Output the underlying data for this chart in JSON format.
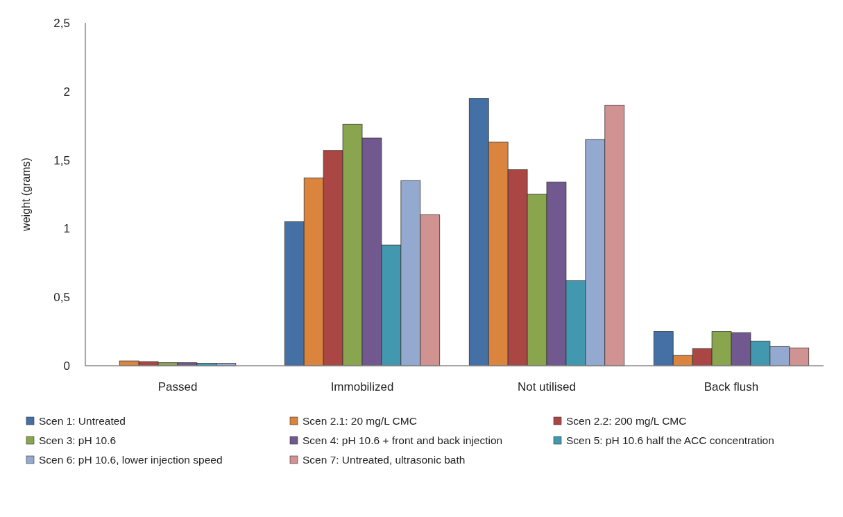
{
  "chart_data": {
    "type": "bar",
    "ylabel": "weight (grams)",
    "categories": [
      "Passed",
      "Immobilized",
      "Not utilised",
      "Back flush"
    ],
    "ylim": [
      0,
      2.5
    ],
    "yticks": [
      0,
      {
        "value": 0.5,
        "label": "0,5"
      },
      1,
      {
        "value": 1.5,
        "label": "1,5"
      },
      2,
      {
        "value": 2.5,
        "label": "2,5"
      }
    ],
    "grid": false,
    "legend": "bottom",
    "series": [
      {
        "name": "Scen 1: Untreated",
        "color": "#4470a6",
        "values": [
          0,
          1.05,
          1.95,
          0.25
        ]
      },
      {
        "name": "Scen 2.1: 20 mg/L CMC",
        "color": "#db843d",
        "values": [
          0.035,
          1.37,
          1.63,
          0.075
        ]
      },
      {
        "name": "Scen 2.2: 200 mg/L CMC",
        "color": "#aa4643",
        "values": [
          0.03,
          1.57,
          1.43,
          0.125
        ]
      },
      {
        "name": "Scen 3: pH 10.6",
        "color": "#89a54e",
        "values": [
          0.022,
          1.76,
          1.25,
          0.25
        ]
      },
      {
        "name": "Scen 4: pH 10.6 + front and back injection",
        "color": "#71588f",
        "values": [
          0.022,
          1.66,
          1.34,
          0.24
        ]
      },
      {
        "name": "Scen 5: pH 10.6 half the ACC concentration",
        "color": "#4198af",
        "values": [
          0.017,
          0.88,
          0.62,
          0.18
        ]
      },
      {
        "name": "Scen 6: pH 10.6, lower injection speed",
        "color": "#93a9cf",
        "values": [
          0.017,
          1.35,
          1.65,
          0.14
        ]
      },
      {
        "name": "Scen 7: Untreated, ultrasonic bath",
        "color": "#d19392",
        "values": [
          0,
          1.1,
          1.9,
          0.13
        ]
      }
    ]
  }
}
